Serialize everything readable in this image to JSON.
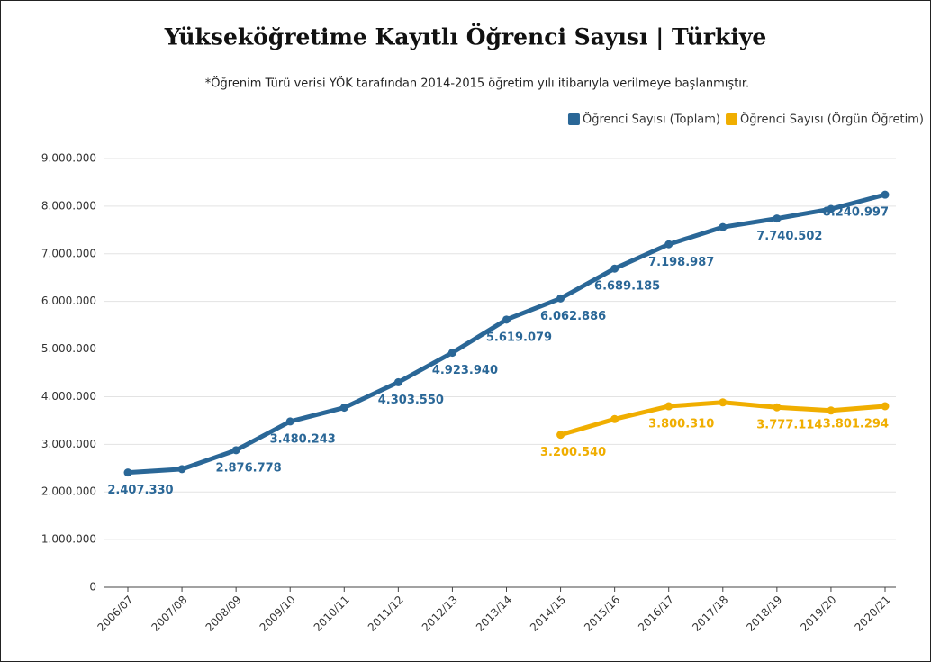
{
  "chart_data": {
    "type": "line",
    "title": "Yükseköğretime Kayıtlı Öğrenci Sayısı | Türkiye",
    "subtitle": "*Öğrenim Türü verisi YÖK tarafından 2014-2015 öğretim yılı itibarıyla verilmeye başlanmıştır.",
    "categories": [
      "2006/07",
      "2007/08",
      "2008/09",
      "2009/10",
      "2010/11",
      "2011/12",
      "2012/13",
      "2013/14",
      "2014/15",
      "2015/16",
      "2016/17",
      "2017/18",
      "2018/19",
      "2019/20",
      "2020/21"
    ],
    "series": [
      {
        "name": "Öğrenci Sayısı (Toplam)",
        "color": "#2a6797",
        "values": [
          2407330,
          2480000,
          2876778,
          3480243,
          3770000,
          4303550,
          4923940,
          5619079,
          6062886,
          6689185,
          7198987,
          7560000,
          7740502,
          7940000,
          8240997
        ],
        "value_labels": [
          "2.407.330",
          null,
          "2.876.778",
          "3.480.243",
          null,
          "4.303.550",
          "4.923.940",
          "5.619.079",
          "6.062.886",
          "6.689.185",
          "7.198.987",
          null,
          "7.740.502",
          null,
          "8.240.997"
        ]
      },
      {
        "name": "Öğrenci Sayısı (Örgün Öğretim)",
        "color": "#f0ae00",
        "values": [
          null,
          null,
          null,
          null,
          null,
          null,
          null,
          null,
          3200540,
          3530000,
          3800310,
          3880000,
          3777114,
          3710000,
          3801294
        ],
        "value_labels": [
          null,
          null,
          null,
          null,
          null,
          null,
          null,
          null,
          "3.200.540",
          null,
          "3.800.310",
          null,
          "3.777.114",
          null,
          "3.801.294"
        ]
      }
    ],
    "ylim": [
      0,
      9000000
    ],
    "yticks": [
      0,
      {
        "value": 1000000,
        "label": "1.000.000"
      },
      {
        "value": 2000000,
        "label": "2.000.000"
      },
      {
        "value": 3000000,
        "label": "3.000.000"
      },
      {
        "value": 4000000,
        "label": "4.000.000"
      },
      {
        "value": 5000000,
        "label": "5.000.000"
      },
      {
        "value": 6000000,
        "label": "6.000.000"
      },
      {
        "value": 7000000,
        "label": "7.000.000"
      },
      {
        "value": 8000000,
        "label": "8.000.000"
      },
      {
        "value": 9000000,
        "label": "9.000.000"
      }
    ],
    "grid": true,
    "legend": "top-right"
  }
}
